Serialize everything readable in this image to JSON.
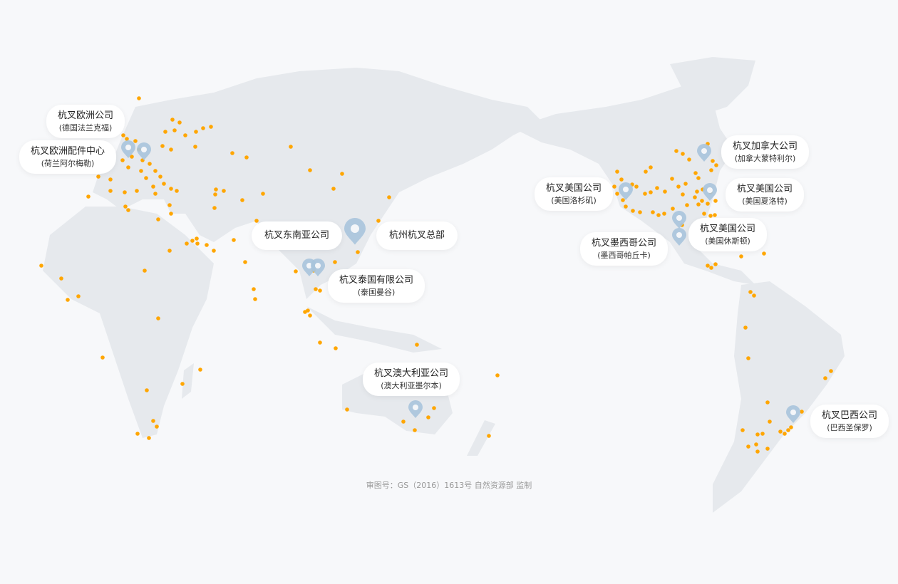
{
  "colors": {
    "land": "#e6e9ed",
    "dot": "#ffa600",
    "pin": "#a9c4dc",
    "background": "#f7f8fa"
  },
  "offices": [
    {
      "id": "frankfurt",
      "name": "杭叉欧洲公司",
      "location": "(德国法兰克福)"
    },
    {
      "id": "netherlands",
      "name": "杭叉欧洲配件中心",
      "location": "(荷兰阿尔梅勒)"
    },
    {
      "id": "sea",
      "name": "杭叉东南亚公司",
      "location": ""
    },
    {
      "id": "hq",
      "name": "杭州杭叉总部",
      "location": ""
    },
    {
      "id": "thailand",
      "name": "杭叉泰国有限公司",
      "location": "(泰国曼谷)"
    },
    {
      "id": "australia",
      "name": "杭叉澳大利亚公司",
      "location": "(澳大利亚墨尔本)"
    },
    {
      "id": "la",
      "name": "杭叉美国公司",
      "location": "(美国洛杉矶)"
    },
    {
      "id": "canada",
      "name": "杭叉加拿大公司",
      "location": "(加拿大蒙特利尔)"
    },
    {
      "id": "charlotte",
      "name": "杭叉美国公司",
      "location": "(美国夏洛特)"
    },
    {
      "id": "houston",
      "name": "杭叉美国公司",
      "location": "(美国休斯顿)"
    },
    {
      "id": "mexico",
      "name": "杭叉墨西哥公司",
      "location": "(墨西哥帕丘卡)"
    },
    {
      "id": "brazil",
      "name": "杭叉巴西公司",
      "location": "(巴西圣保罗)"
    }
  ],
  "footer": "审图号：GS（2016）1613号 自然资源部 监制"
}
